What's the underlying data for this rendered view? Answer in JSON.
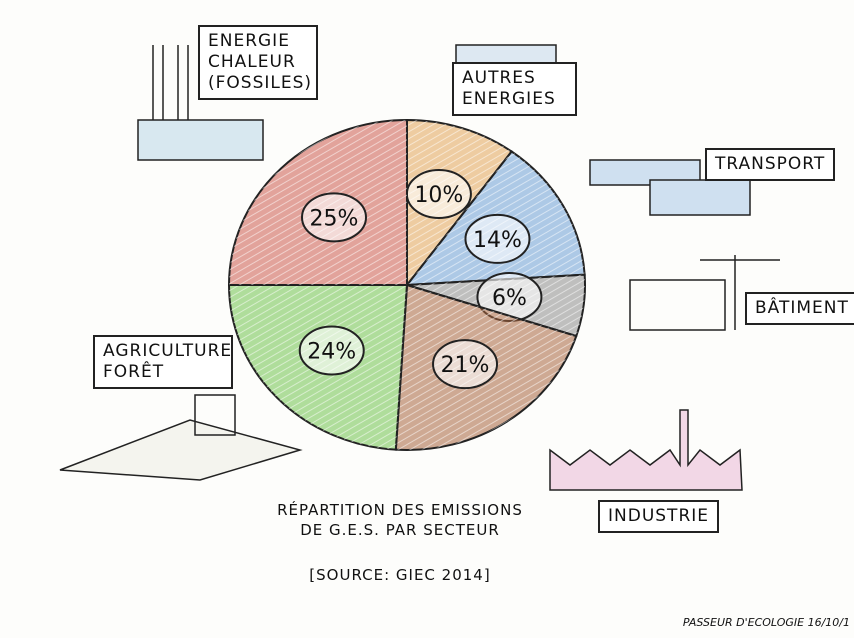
{
  "chart_data": {
    "type": "pie",
    "title": "RÉPARTITION DES EMISSIONS DE G.E.S. PAR SECTEUR",
    "subtitle": "[SOURCE: GIEC 2014]",
    "footer": "PASSEUR D'ECOLOGIE 16/10/1",
    "categories": [
      "AUTRES ENERGIES",
      "TRANSPORT",
      "BÂTIMENT",
      "INDUSTRIE",
      "AGRICULTURE FORÊT",
      "ENERGIE CHALEUR (FOSSILES)"
    ],
    "values": [
      10,
      14,
      6,
      21,
      24,
      25
    ],
    "value_labels": [
      "10%",
      "14%",
      "6%",
      "21%",
      "24%",
      "25%"
    ],
    "colors": [
      "#e2a458",
      "#6b9fd6",
      "#8c8c8c",
      "#a8643e",
      "#6fc24c",
      "#cc5a4c"
    ]
  }
}
